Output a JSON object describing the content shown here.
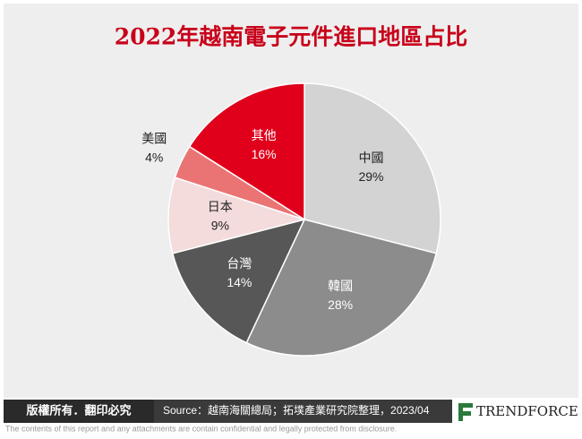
{
  "chart_data": {
    "type": "pie",
    "title": "2022年越南電子元件進口地區占比",
    "categories": [
      "中國",
      "韓國",
      "台灣",
      "日本",
      "美國",
      "其他"
    ],
    "values": [
      29,
      28,
      14,
      9,
      4,
      16
    ],
    "value_labels": [
      "29%",
      "28%",
      "14%",
      "9%",
      "4%",
      "16%"
    ],
    "colors": [
      "#d3d3d3",
      "#8c8c8c",
      "#575757",
      "#f4dcdc",
      "#ea7474",
      "#e0001b"
    ]
  },
  "footer": {
    "copyright": "版權所有．翻印必究",
    "source": "Source：越南海關總局；拓墣產業研究院整理，2023/04",
    "logo": "TRENDFORCE"
  },
  "disclaimer": "The contents of this report and any attachments are contain confidential and legally protected from disclosure."
}
